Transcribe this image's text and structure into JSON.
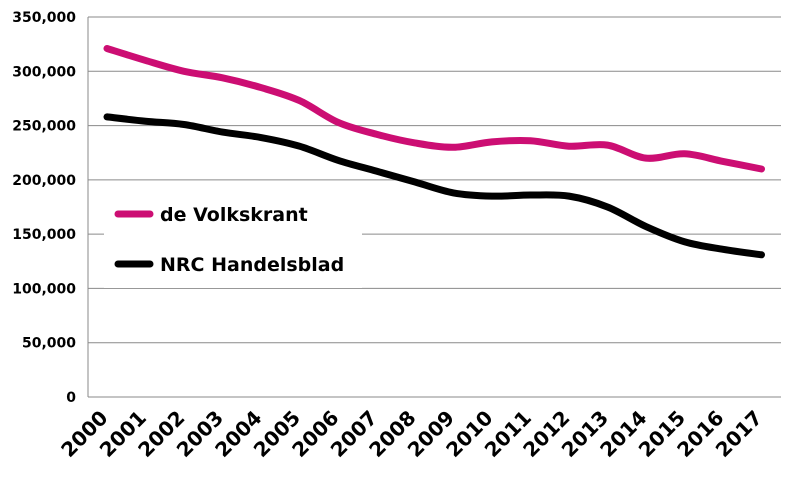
{
  "chart_data": {
    "type": "line",
    "title": "",
    "xlabel": "",
    "ylabel": "",
    "categories": [
      "2000",
      "2001",
      "2002",
      "2003",
      "2004",
      "2005",
      "2006",
      "2007",
      "2008",
      "2009",
      "2010",
      "2011",
      "2012",
      "2013",
      "2014",
      "2015",
      "2016",
      "2017"
    ],
    "ylim": [
      0,
      350000
    ],
    "yticks": [
      0,
      50000,
      100000,
      150000,
      200000,
      250000,
      300000,
      350000
    ],
    "ytick_labels": [
      "0",
      "50,000",
      "100,000",
      "150,000",
      "200,000",
      "250,000",
      "300,000",
      "350,000"
    ],
    "grid": true,
    "legend_position": "left-middle",
    "series": [
      {
        "name": "de Volkskrant",
        "color": "#cc0e73",
        "values": [
          321000,
          310000,
          300000,
          294000,
          285000,
          273000,
          253000,
          242000,
          234000,
          230000,
          235000,
          236000,
          231000,
          232000,
          220000,
          224000,
          217000,
          210000
        ]
      },
      {
        "name": "NRC Handelsblad",
        "color": "#000000",
        "values": [
          258000,
          254000,
          251000,
          244000,
          239000,
          231000,
          218000,
          208000,
          198000,
          188000,
          185000,
          186000,
          185000,
          175000,
          157000,
          143000,
          136000,
          131000
        ]
      }
    ]
  }
}
